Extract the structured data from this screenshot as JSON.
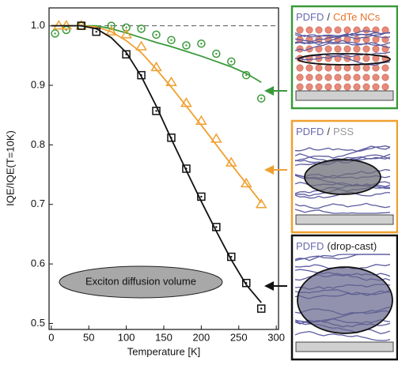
{
  "chart_data": {
    "type": "scatter",
    "xlabel": "Temperature [K]",
    "ylabel": "IQE/IQE(T=10K)",
    "xlim": [
      -3,
      303
    ],
    "ylim": [
      0.49,
      1.03
    ],
    "xticks": [
      0,
      50,
      100,
      150,
      200,
      250,
      300
    ],
    "yticks": [
      0.5,
      0.6,
      0.7,
      0.8,
      0.9,
      {
        "value": 1,
        "label": "1.0"
      }
    ],
    "reference_line": 1,
    "annotation": "Exciton diffusion volume",
    "series": [
      {
        "color": "#3a9a3a",
        "marker": "circle",
        "x": [
          5,
          20,
          40,
          80,
          100,
          120,
          140,
          160,
          180,
          200,
          220,
          240,
          260,
          280
        ],
        "values": [
          0.987,
          0.993,
          1.0,
          1.0,
          0.997,
          0.995,
          0.985,
          0.976,
          0.967,
          0.97,
          0.953,
          0.94,
          0.917,
          0.878
        ],
        "fit_x": [
          0,
          20,
          40,
          60,
          80,
          100,
          120,
          140,
          160,
          180,
          200,
          220,
          240,
          260,
          280
        ],
        "fit": [
          1,
          1,
          1,
          1,
          0.995,
          0.988,
          0.98,
          0.972,
          0.965,
          0.957,
          0.949,
          0.94,
          0.931,
          0.92,
          0.905
        ]
      },
      {
        "color": "#f0a030",
        "marker": "triangle",
        "x": [
          10,
          20,
          40,
          80,
          100,
          120,
          140,
          160,
          180,
          200,
          220,
          240,
          260,
          280
        ],
        "values": [
          1.0,
          1.0,
          1.0,
          0.99,
          0.985,
          0.965,
          0.93,
          0.905,
          0.87,
          0.84,
          0.81,
          0.77,
          0.735,
          0.7
        ],
        "fit_x": [
          0,
          20,
          40,
          60,
          80,
          100,
          120,
          140,
          160,
          180,
          200,
          220,
          240,
          260,
          280
        ],
        "fit": [
          1,
          1,
          1,
          0.998,
          0.99,
          0.975,
          0.955,
          0.927,
          0.897,
          0.865,
          0.833,
          0.8,
          0.767,
          0.735,
          0.703
        ]
      },
      {
        "color": "#111111",
        "marker": "square",
        "x": [
          40,
          60,
          100,
          120,
          140,
          160,
          180,
          200,
          220,
          240,
          260,
          280
        ],
        "values": [
          1.0,
          0.99,
          0.952,
          0.917,
          0.857,
          0.812,
          0.76,
          0.713,
          0.662,
          0.612,
          0.568,
          0.525
        ],
        "fit_x": [
          0,
          20,
          40,
          60,
          80,
          100,
          120,
          140,
          160,
          180,
          200,
          220,
          240,
          260,
          280
        ],
        "fit": [
          1,
          1,
          1,
          0.995,
          0.98,
          0.955,
          0.915,
          0.865,
          0.81,
          0.757,
          0.705,
          0.655,
          0.607,
          0.565,
          0.535
        ]
      }
    ]
  },
  "insets": [
    {
      "color": "#3a9a3a",
      "parts": [
        {
          "text": "PDFD",
          "color": "#6a6ab0"
        },
        {
          "text": "/",
          "color": "#333333"
        },
        {
          "text": "CdTe NCs",
          "color": "#e8742c"
        }
      ]
    },
    {
      "color": "#f0a030",
      "parts": [
        {
          "text": "PDFD",
          "color": "#6a6ab0"
        },
        {
          "text": "/",
          "color": "#333333"
        },
        {
          "text": "PSS",
          "color": "#999999"
        }
      ]
    },
    {
      "color": "#111111",
      "parts": [
        {
          "text": "PDFD",
          "color": "#6a6ab0"
        },
        {
          "text": "(drop-cast)",
          "color": "#222222"
        }
      ]
    }
  ]
}
